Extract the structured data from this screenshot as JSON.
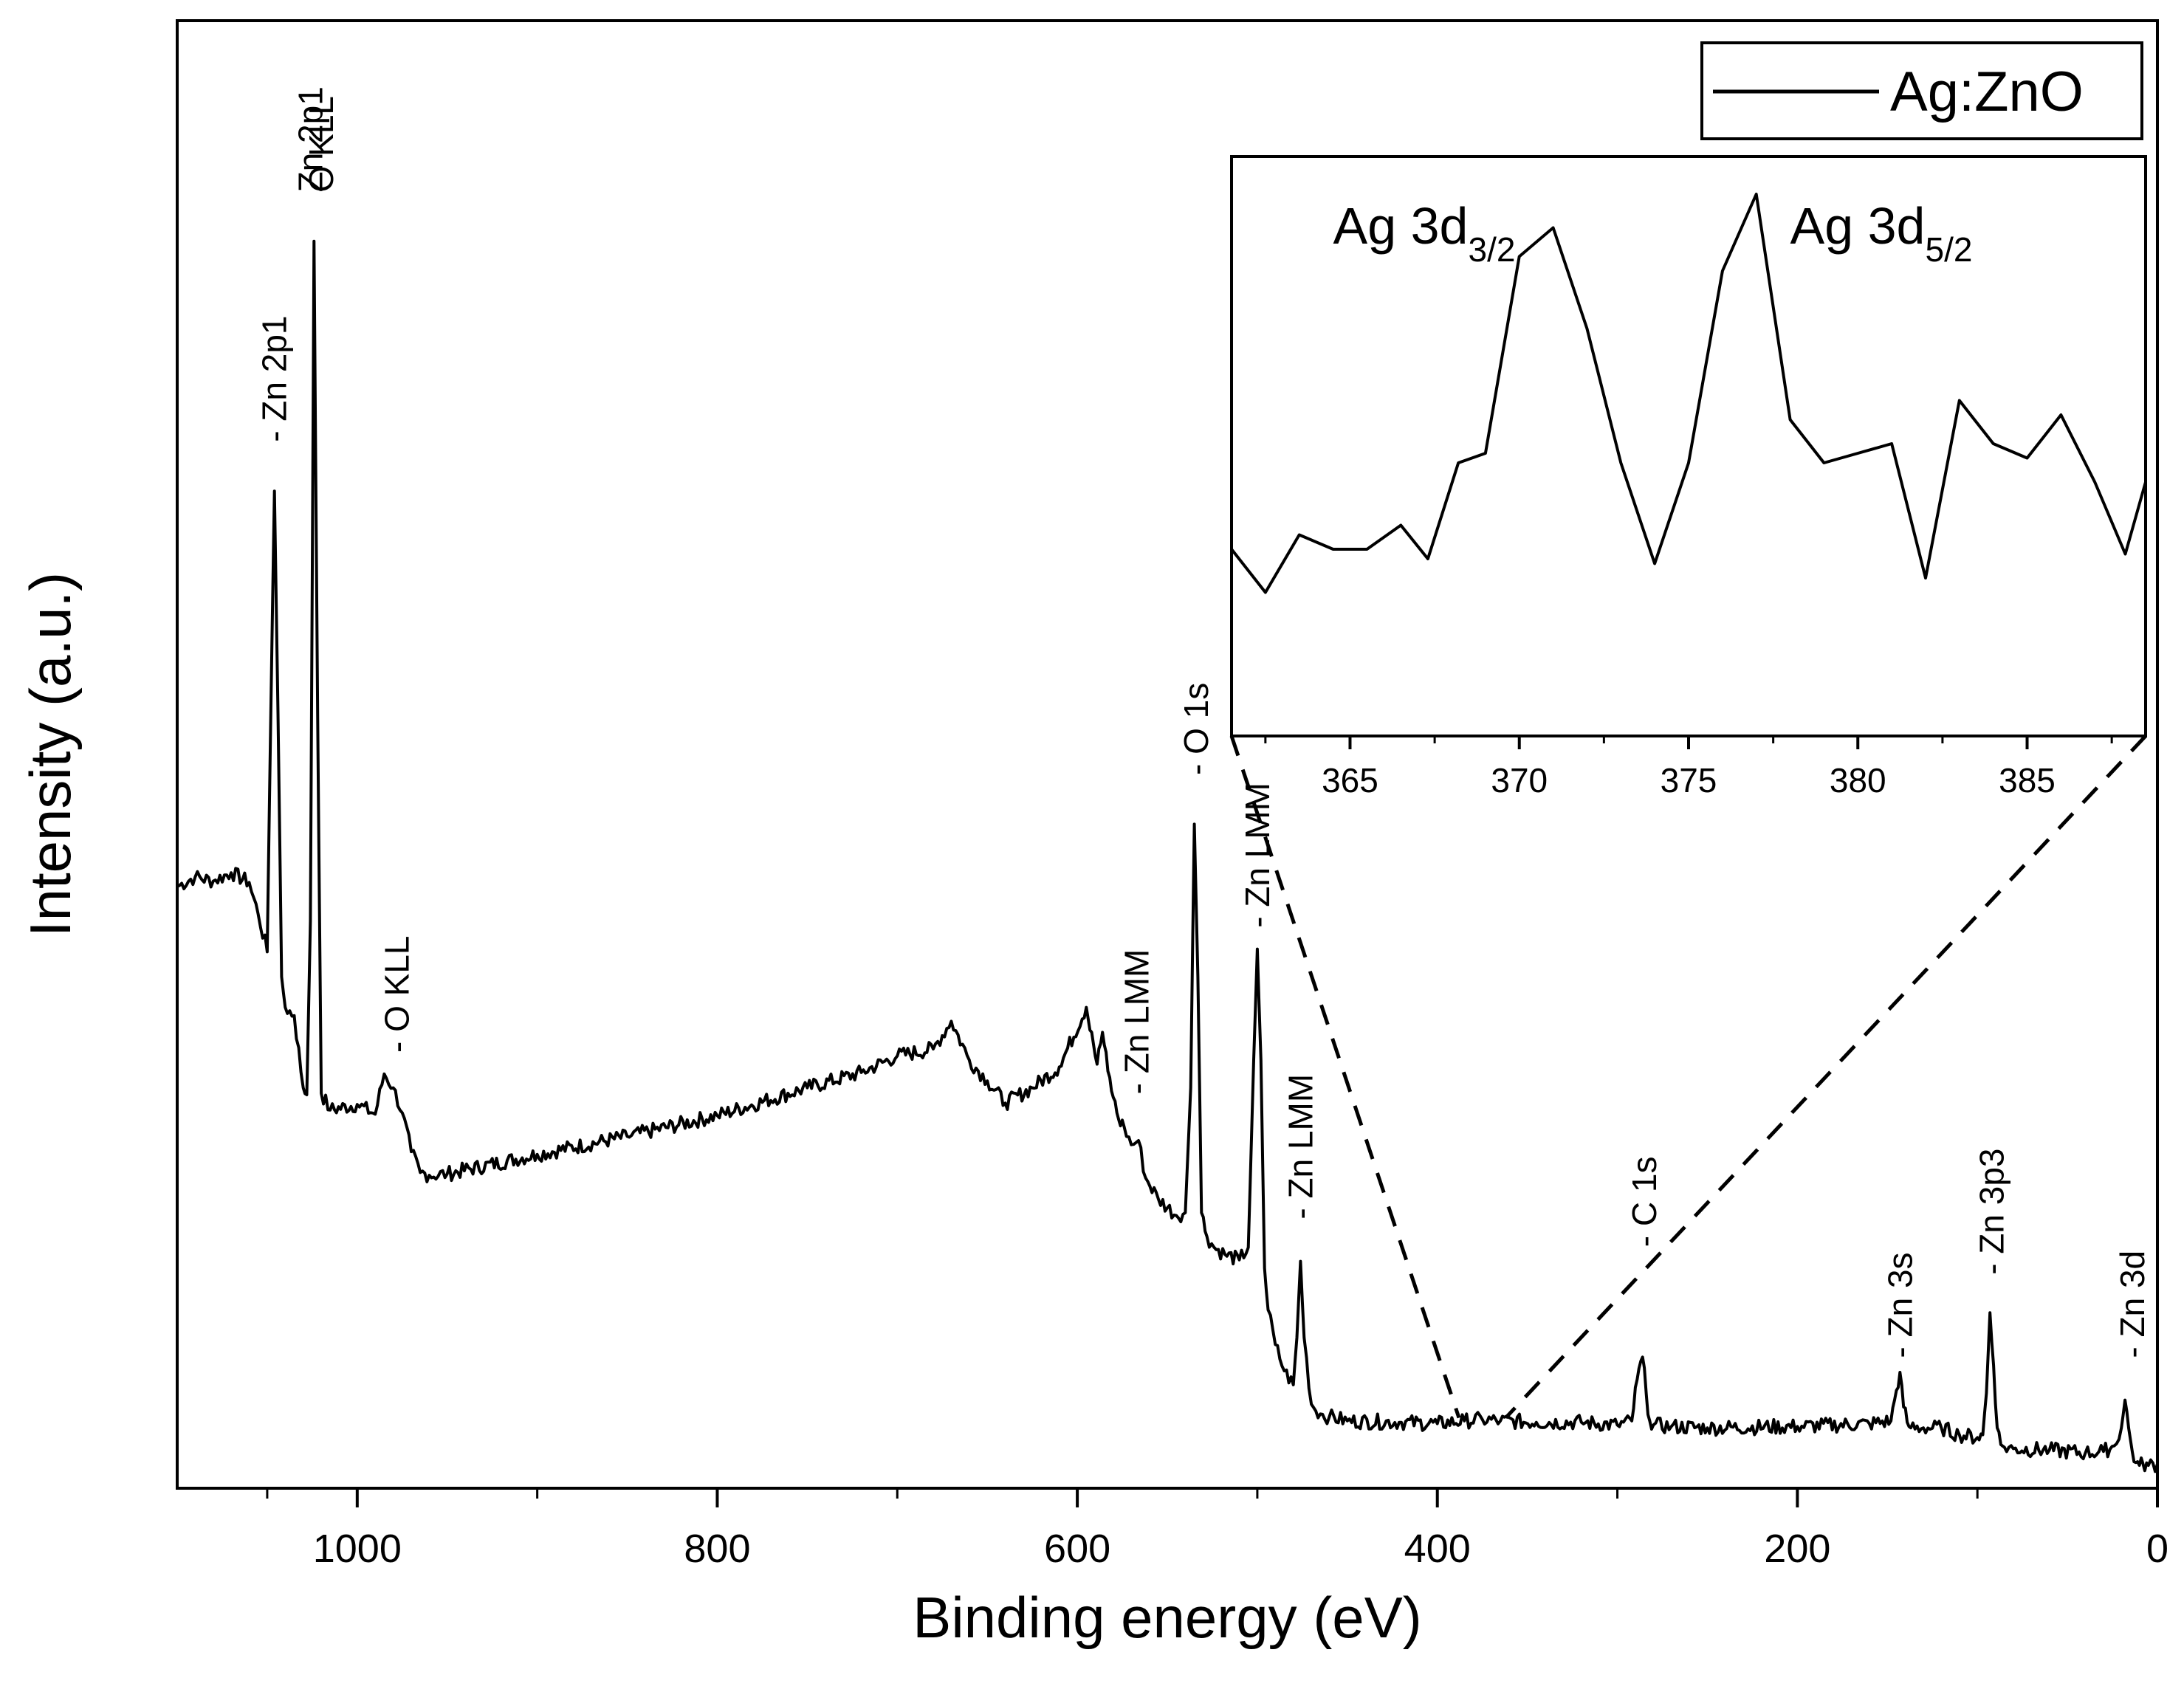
{
  "chart_data": {
    "type": "line",
    "title": "",
    "xlabel": "Binding energy (eV)",
    "ylabel": "Intensity (a.u.)",
    "xlim": [
      1100,
      0
    ],
    "ylim": [
      0,
      100
    ],
    "x_reversed": true,
    "y_ticks_shown": false,
    "xticks": [
      1000,
      800,
      600,
      400,
      200,
      0
    ],
    "xtick_labels": [
      "1000",
      "800",
      "600",
      "400",
      "200",
      "0"
    ],
    "legend": {
      "position": "top-right",
      "entries": [
        "Ag:ZnO"
      ]
    },
    "series": [
      {
        "name": "Ag:ZnO",
        "x": [
          1100,
          1090,
          1080,
          1070,
          1060,
          1055,
          1050,
          1048,
          1046,
          1044,
          1042,
          1040,
          1035,
          1030,
          1028,
          1026,
          1024,
          1022,
          1020,
          1015,
          1000,
          990,
          985,
          980,
          975,
          970,
          965,
          960,
          950,
          900,
          850,
          800,
          750,
          720,
          700,
          680,
          670,
          660,
          650,
          640,
          625,
          610,
          595,
          592,
          589,
          586,
          583,
          580,
          577,
          574,
          570,
          566,
          562,
          555,
          545,
          540,
          537,
          535,
          533,
          531,
          528,
          524,
          518,
          510,
          505,
          502,
          500,
          498,
          496,
          494,
          490,
          485,
          480,
          478,
          476,
          474,
          470,
          465,
          460,
          450,
          420,
          400,
          385,
          375,
          365,
          345,
          320,
          300,
          292,
          289,
          286,
          284,
          282,
          280,
          270,
          250,
          200,
          160,
          148,
          145,
          143,
          141,
          139,
          137,
          130,
          120,
          110,
          100,
          97,
          95,
          93,
          91,
          89,
          87,
          85,
          80,
          60,
          40,
          30,
          24,
          20,
          18,
          16,
          14,
          12,
          10,
          8,
          5,
          0
        ],
        "y": [
          42.5,
          43.2,
          42.9,
          43.5,
          42.8,
          40.5,
          37.8,
          55.0,
          71.0,
          55.0,
          36.0,
          33.8,
          33.2,
          28.0,
          27.5,
          40.0,
          89.0,
          55.0,
          27.6,
          26.4,
          26.8,
          26.1,
          29.0,
          28.0,
          26.2,
          23.4,
          21.9,
          21.7,
          21.8,
          23.2,
          24.5,
          26.0,
          28.0,
          29.1,
          30.3,
          30.8,
          32.8,
          30.0,
          28.5,
          26.9,
          28.0,
          29.5,
          33.8,
          32.0,
          29.7,
          32.0,
          29.2,
          27.3,
          25.7,
          25.2,
          23.9,
          24.2,
          21.5,
          20.0,
          18.8,
          19.0,
          28.0,
          47.0,
          36.0,
          19.0,
          17.3,
          16.5,
          16.0,
          15.6,
          16.5,
          30.0,
          38.0,
          30.0,
          15.0,
          12.0,
          9.5,
          7.6,
          6.6,
          10.0,
          15.5,
          10.0,
          5.2,
          4.5,
          4.3,
          4.0,
          3.9,
          3.8,
          4.0,
          4.1,
          4.0,
          3.9,
          3.9,
          3.7,
          4.0,
          7.0,
          8.6,
          6.0,
          4.0,
          3.7,
          3.6,
          3.5,
          3.6,
          3.8,
          4.0,
          6.2,
          7.5,
          5.0,
          3.9,
          3.5,
          3.5,
          3.5,
          3.0,
          2.8,
          3.0,
          6.0,
          11.8,
          8.0,
          3.5,
          2.3,
          2.1,
          2.0,
          1.9,
          1.7,
          1.8,
          2.2,
          3.5,
          5.5,
          3.5,
          1.8,
          1.0,
          0.8,
          0.9,
          0.8,
          0.9
        ]
      }
    ],
    "annotations": [
      {
        "text": "- Zn 2p1",
        "x": 1046,
        "anchor_y": 74
      },
      {
        "text": "Zn 2p1",
        "x": 1026,
        "anchor_y": 92
      },
      {
        "text": "O KLL",
        "x": 1020,
        "anchor_y": 92
      },
      {
        "text": "- O KLL",
        "x": 978,
        "anchor_y": 30
      },
      {
        "text": "- Zn LMM",
        "x": 567,
        "anchor_y": 27
      },
      {
        "text": "- O 1s",
        "x": 534,
        "anchor_y": 50
      },
      {
        "text": "- Zn LMM",
        "x": 500,
        "anchor_y": 39
      },
      {
        "text": "- Zn LMM",
        "x": 476,
        "anchor_y": 18
      },
      {
        "text": "- C 1s",
        "x": 285,
        "anchor_y": 16
      },
      {
        "text": "- Zn 3s",
        "x": 143,
        "anchor_y": 8
      },
      {
        "text": "- Zn 3p3",
        "x": 92,
        "anchor_y": 14
      },
      {
        "text": "- Zn 3d",
        "x": 14,
        "anchor_y": 8
      }
    ],
    "zoom_region": {
      "x_from": 388,
      "x_to": 362,
      "description_dashes": "dashed lines connect inset to main curve near 370-390 eV"
    },
    "inset": {
      "type": "line",
      "xlim": [
        361.5,
        388.5
      ],
      "xticks": [
        365,
        370,
        375,
        380,
        385
      ],
      "xtick_labels": [
        "365",
        "370",
        "375",
        "380",
        "385"
      ],
      "ylim": [
        0,
        100
      ],
      "labels": [
        {
          "main": "Ag 3d",
          "sub": "3/2",
          "x": 364.5
        },
        {
          "main": "Ag 3d",
          "sub": "5/2",
          "x": 378.0
        }
      ],
      "series": [
        {
          "name": "Ag:ZnO (inset)",
          "x": [
            361.5,
            362.5,
            363.5,
            364.5,
            365.5,
            366.5,
            367.3,
            368.2,
            369.0,
            370.0,
            371.0,
            372.0,
            373.0,
            374.0,
            375.0,
            376.0,
            377.0,
            378.0,
            379.0,
            380.0,
            381.0,
            382.0,
            383.0,
            384.0,
            385.0,
            386.0,
            387.0,
            387.9,
            388.5
          ],
          "y": [
            24,
            15,
            27,
            24,
            24,
            29,
            22,
            42,
            44,
            85,
            91,
            70,
            42,
            21,
            42,
            82,
            98,
            51,
            42,
            44,
            46,
            18,
            55,
            46,
            43,
            52,
            38,
            23,
            38
          ]
        }
      ]
    }
  }
}
